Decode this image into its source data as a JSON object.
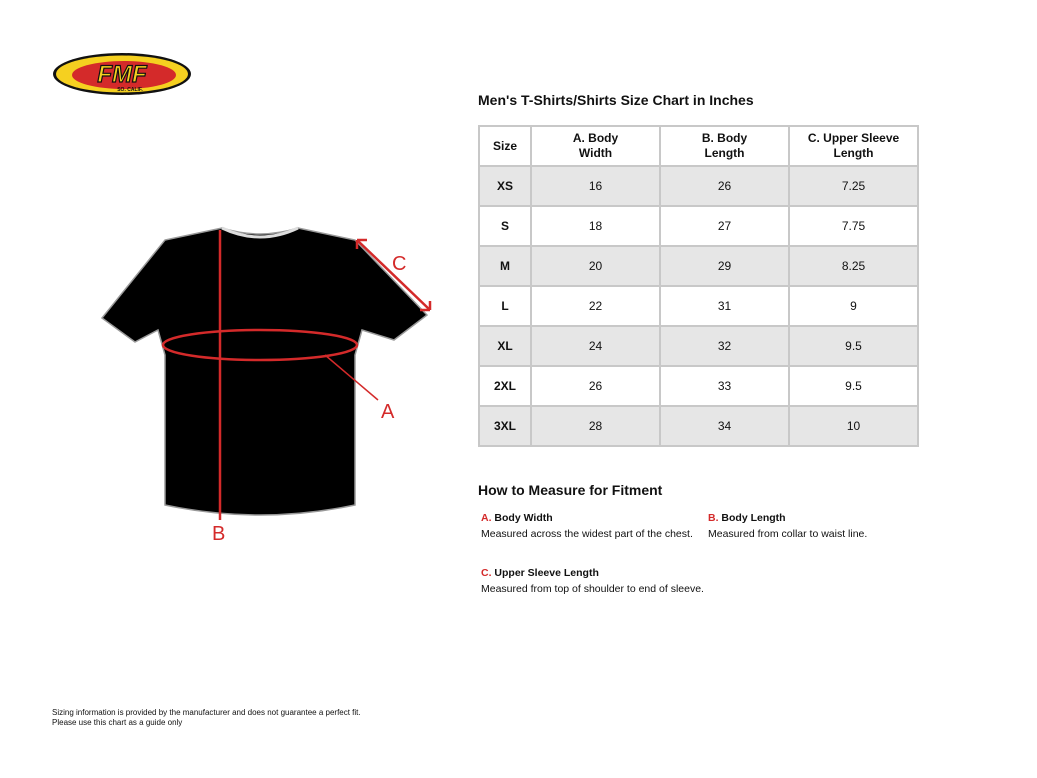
{
  "logo": {
    "text": "FMF",
    "subtext": "SO. CALIF.",
    "colors": {
      "yellow": "#f5d020",
      "red": "#d42a2a",
      "black": "#111111"
    }
  },
  "diagram": {
    "labels": {
      "a": "A",
      "b": "B",
      "c": "C"
    },
    "accent": "#d42a2a"
  },
  "chart": {
    "title": "Men's T-Shirts/Shirts Size Chart in Inches",
    "headers": [
      "Size",
      "A. Body Width",
      "B. Body Length",
      "C. Upper Sleeve Length"
    ],
    "rows": [
      [
        "XS",
        "16",
        "26",
        "7.25"
      ],
      [
        "S",
        "18",
        "27",
        "7.75"
      ],
      [
        "M",
        "20",
        "29",
        "8.25"
      ],
      [
        "L",
        "22",
        "31",
        "9"
      ],
      [
        "XL",
        "24",
        "32",
        "9.5"
      ],
      [
        "2XL",
        "26",
        "33",
        "9.5"
      ],
      [
        "3XL",
        "28",
        "34",
        "10"
      ]
    ]
  },
  "measure": {
    "title": "How to Measure for Fitment",
    "items": [
      {
        "letter": "A.",
        "name": "Body Width",
        "desc": "Measured across the widest part of the chest."
      },
      {
        "letter": "B.",
        "name": "Body Length",
        "desc": "Measured from collar to waist line."
      },
      {
        "letter": "C.",
        "name": "Upper Sleeve Length",
        "desc": "Measured from top of shoulder to end of sleeve."
      }
    ]
  },
  "footer": {
    "line1": "Sizing information is provided by the manufacturer and does not guarantee a perfect fit.",
    "line2": "Please use this chart as a guide only"
  }
}
